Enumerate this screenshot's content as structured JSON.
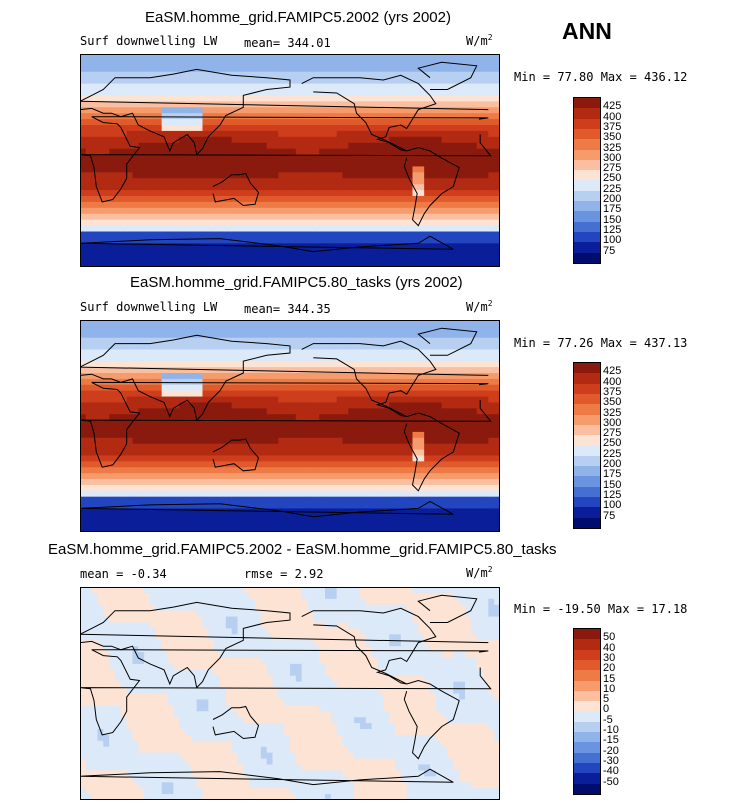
{
  "season": "ANN",
  "panels": [
    {
      "title": "EaSM.homme_grid.FAMIPC5.2002 (yrs 2002)",
      "variable": "Surf downwelling LW",
      "mean_text": "mean= 344.01",
      "units_text": "W/m",
      "units_sup": "2",
      "minmax_text": "Min =  77.80 Max = 436.12",
      "levels": [
        "425",
        "400",
        "375",
        "350",
        "325",
        "300",
        "275",
        "250",
        "225",
        "200",
        "175",
        "150",
        "125",
        "100",
        "75"
      ],
      "palette": "full"
    },
    {
      "title": "EaSM.homme_grid.FAMIPC5.80_tasks (yrs 2002)",
      "variable": "Surf downwelling LW",
      "mean_text": "mean= 344.35",
      "units_text": "W/m",
      "units_sup": "2",
      "minmax_text": "Min =  77.26 Max = 437.13",
      "levels": [
        "425",
        "400",
        "375",
        "350",
        "325",
        "300",
        "275",
        "250",
        "225",
        "200",
        "175",
        "150",
        "125",
        "100",
        "75"
      ],
      "palette": "full"
    },
    {
      "title": "EaSM.homme_grid.FAMIPC5.2002 - EaSM.homme_grid.FAMIPC5.80_tasks",
      "variable": "",
      "mean_text": "mean =  -0.34",
      "rmse_text": "rmse =    2.92",
      "units_text": "W/m",
      "units_sup": "2",
      "minmax_text": "Min = -19.50 Max =  17.18",
      "levels": [
        "50",
        "40",
        "30",
        "20",
        "15",
        "10",
        "5",
        "0",
        "-5",
        "-10",
        "-15",
        "-20",
        "-30",
        "-40",
        "-50"
      ],
      "palette": "diff"
    }
  ],
  "colors": {
    "full": [
      "#8b1a0e",
      "#b22a12",
      "#cf3e1c",
      "#e05a2b",
      "#ee7a45",
      "#f59b6c",
      "#f9bfa0",
      "#fde3d4",
      "#dce9f8",
      "#b7cff1",
      "#90b3ea",
      "#6a93e0",
      "#466fd2",
      "#2346c0",
      "#0a1e9a",
      "#000c6e"
    ],
    "diff": [
      "#8b1a0e",
      "#b22a12",
      "#cf3e1c",
      "#e05a2b",
      "#ee7a45",
      "#f59b6c",
      "#f9bfa0",
      "#fde3d4",
      "#dce9f8",
      "#b7cff1",
      "#90b3ea",
      "#6a93e0",
      "#466fd2",
      "#2346c0",
      "#0a1e9a",
      "#000c6e"
    ]
  }
}
